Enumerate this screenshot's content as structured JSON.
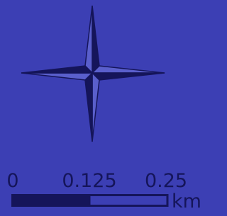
{
  "scale_bar": {
    "labels": [
      "0",
      "0.125",
      "0.25"
    ],
    "unit": "km"
  }
}
